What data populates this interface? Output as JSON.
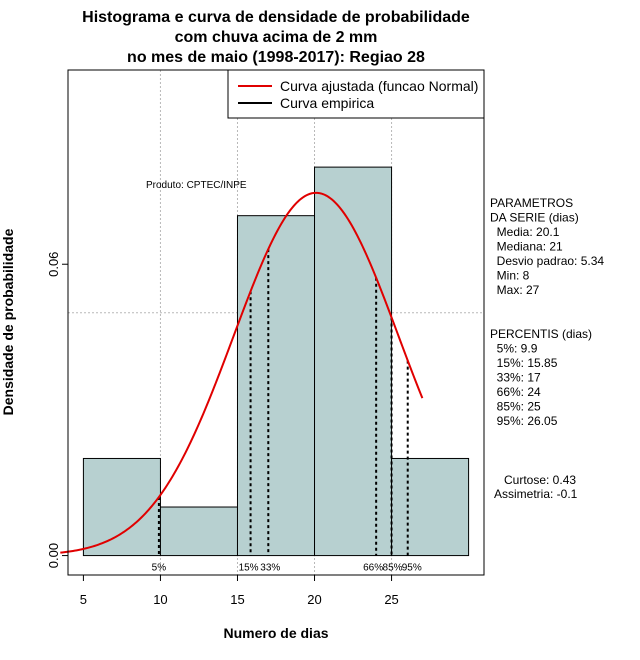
{
  "chart_data": {
    "type": "bar",
    "title_lines": [
      "Histograma e curva de densidade de probabilidade",
      "com chuva acima de 2 mm",
      "no mes de maio (1998-2017): Regiao 28"
    ],
    "xlabel": "Numero de dias",
    "ylabel": "Densidade de probabilidade",
    "xlim": [
      4,
      31
    ],
    "ylim": [
      -0.004,
      0.1
    ],
    "x_ticks": [
      5,
      10,
      15,
      20,
      25
    ],
    "y_ticks": [
      0.0,
      0.06
    ],
    "y_tick_labels": [
      "0.00",
      "0.06"
    ],
    "bins": [
      {
        "start": 5,
        "end": 10,
        "density": 0.02
      },
      {
        "start": 10,
        "end": 15,
        "density": 0.01
      },
      {
        "start": 15,
        "end": 20,
        "density": 0.07
      },
      {
        "start": 20,
        "end": 25,
        "density": 0.08
      },
      {
        "start": 25,
        "end": 30,
        "density": 0.02
      }
    ],
    "bar_color": "#b7d0d0",
    "curve_color": "#e00000",
    "normal_fit": {
      "mean": 20.1,
      "sd": 5.34,
      "x_from": 3.5,
      "x_to": 27
    },
    "grid_x": [
      10,
      15,
      20,
      25
    ],
    "grid_y": [
      0.05,
      0.1
    ],
    "legend": [
      {
        "label": "Curva ajustada (funcao Normal)",
        "color": "#e00000"
      },
      {
        "label": "Curva empirica",
        "color": "#000000"
      }
    ],
    "product_label": "Produto: CPTEC/INPE",
    "percentile_markers": [
      {
        "label": "5%",
        "x": 9.9
      },
      {
        "label": "15%",
        "x": 15.85
      },
      {
        "label": "33%",
        "x": 17
      },
      {
        "label": "66%",
        "x": 24
      },
      {
        "label": "85%",
        "x": 25
      },
      {
        "label": "95%",
        "x": 26.05
      }
    ]
  },
  "stats_panel": {
    "params_lines": [
      "PARAMETROS",
      "DA SERIE (dias)",
      "  Media: 20.1",
      "  Mediana: 21",
      "  Desvio padrao: 5.34",
      "  Min: 8",
      "  Max: 27"
    ],
    "percentis_lines": [
      "PERCENTIS (dias)",
      "  5%: 9.9",
      "  15%: 15.85",
      "  33%: 17",
      "  66%: 24",
      "  85%: 25",
      "  95%: 26.05"
    ],
    "shape_lines": [
      "Curtose: 0.43",
      "Assimetria: -0.1"
    ]
  }
}
